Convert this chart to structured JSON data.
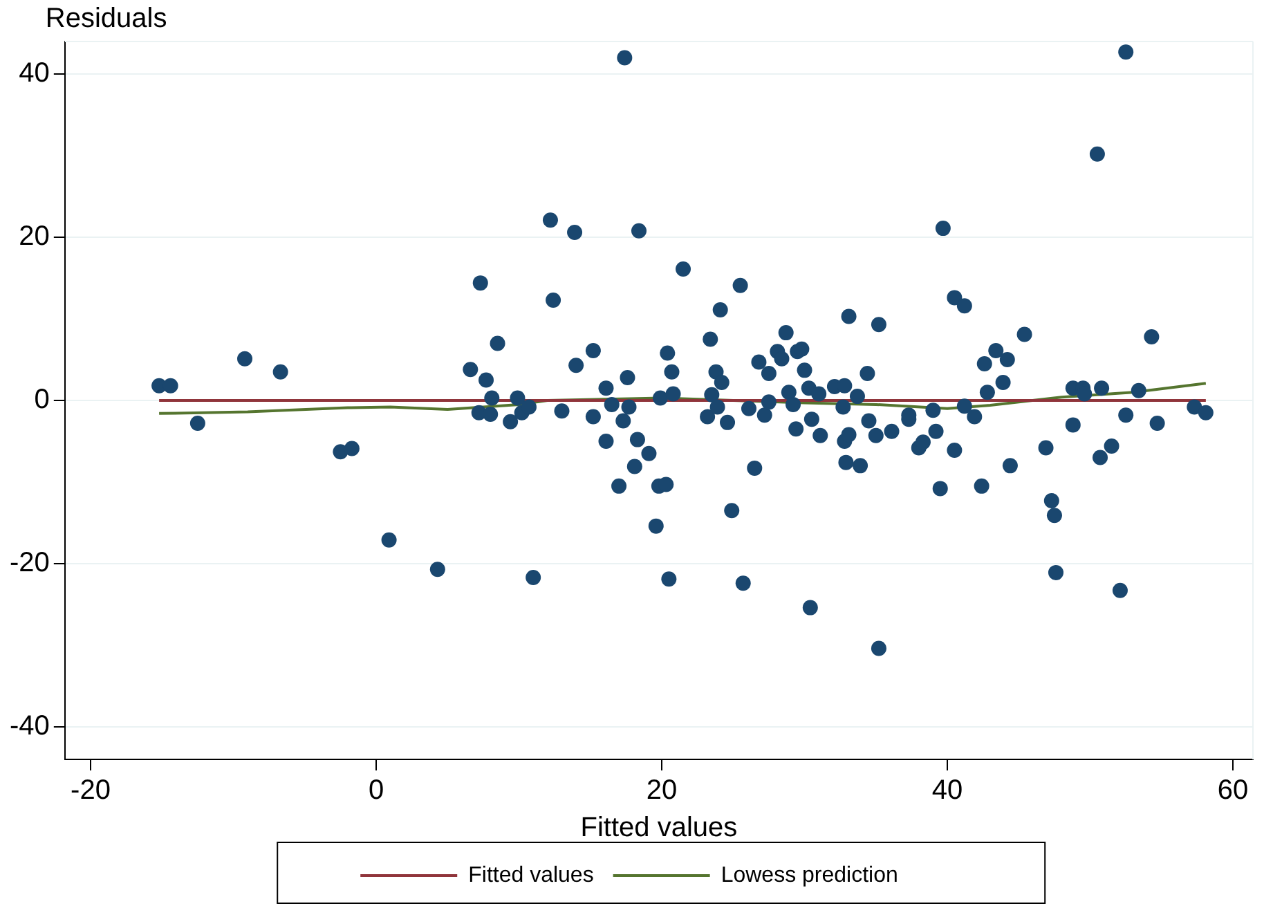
{
  "chart_data": {
    "type": "scatter",
    "xlabel": "Fitted values",
    "ylabel": "Residuals",
    "xlim": [
      -21.8,
      61.4
    ],
    "ylim": [
      -44,
      44
    ],
    "xticks": [
      -20,
      0,
      20,
      40,
      60
    ],
    "yticks": [
      -40,
      -20,
      0,
      20,
      40
    ],
    "grid": "y",
    "legend": "bottom",
    "marker": "circle",
    "series": [
      {
        "color": "#1a476f",
        "x": [
          -15.2,
          -14.4,
          -12.5,
          -9.2,
          -6.7,
          -2.5,
          -1.7,
          0.9,
          4.3,
          6.6,
          7.3,
          7.2,
          7.7,
          8.1,
          8.0,
          8.5,
          9.4,
          9.9,
          10.2,
          10.7,
          11.0,
          12.2,
          12.4,
          13.0,
          13.9,
          14.0,
          15.2,
          15.2,
          16.1,
          16.1,
          16.5,
          17.0,
          17.4,
          17.3,
          17.6,
          17.7,
          18.1,
          18.4,
          18.3,
          19.1,
          19.6,
          19.8,
          19.9,
          20.3,
          20.4,
          20.5,
          20.7,
          20.8,
          21.5,
          23.2,
          23.4,
          23.5,
          23.8,
          23.9,
          24.1,
          24.2,
          24.6,
          24.9,
          25.5,
          25.7,
          26.1,
          26.5,
          26.8,
          27.2,
          27.5,
          27.5,
          28.1,
          28.4,
          28.7,
          28.9,
          29.2,
          29.5,
          29.4,
          29.8,
          30.0,
          30.3,
          30.5,
          30.4,
          31.0,
          31.1,
          32.1,
          32.8,
          32.7,
          32.8,
          32.9,
          33.1,
          33.1,
          33.7,
          33.9,
          34.4,
          34.5,
          35.0,
          35.2,
          35.2,
          36.1,
          37.3,
          37.3,
          38.0,
          38.3,
          39.0,
          39.2,
          39.5,
          39.7,
          40.5,
          40.5,
          41.2,
          41.2,
          41.9,
          42.4,
          42.6,
          42.8,
          43.4,
          43.9,
          44.2,
          44.4,
          45.4,
          46.9,
          47.3,
          47.5,
          47.6,
          48.8,
          48.8,
          49.5,
          49.6,
          50.5,
          50.7,
          50.8,
          51.5,
          52.1,
          52.5,
          52.5,
          53.4,
          54.3,
          54.7,
          57.3,
          58.1
        ],
        "values": [
          1.8,
          1.8,
          -2.8,
          5.1,
          3.5,
          -6.3,
          -5.9,
          -17.1,
          -20.7,
          3.8,
          14.4,
          -1.5,
          2.5,
          0.3,
          -1.7,
          7.0,
          -2.6,
          0.3,
          -1.5,
          -0.8,
          -21.7,
          22.1,
          12.3,
          -1.3,
          20.6,
          4.3,
          6.1,
          -2.0,
          1.5,
          -5.0,
          -0.5,
          -10.5,
          42.0,
          -2.5,
          2.8,
          -0.8,
          -8.1,
          20.8,
          -4.8,
          -6.5,
          -15.4,
          -10.5,
          0.3,
          -10.3,
          5.8,
          -21.9,
          3.5,
          0.8,
          16.1,
          -2.0,
          7.5,
          0.7,
          3.5,
          -0.8,
          11.1,
          2.2,
          -2.7,
          -13.5,
          14.1,
          -22.4,
          -1.0,
          -8.3,
          4.7,
          -1.8,
          3.3,
          -0.2,
          6.0,
          5.1,
          8.3,
          1.0,
          -0.5,
          6.0,
          -3.5,
          6.3,
          3.7,
          1.5,
          -2.3,
          -25.4,
          0.8,
          -4.3,
          1.7,
          1.8,
          -0.8,
          -5.0,
          -7.6,
          10.3,
          -4.2,
          0.5,
          -8.0,
          3.3,
          -2.5,
          -4.3,
          9.3,
          -30.4,
          -3.8,
          -2.3,
          -1.8,
          -5.8,
          -5.1,
          -1.2,
          -3.8,
          -10.8,
          21.1,
          -6.1,
          12.6,
          11.6,
          -0.7,
          -2.0,
          -10.5,
          4.5,
          1.0,
          6.1,
          2.2,
          5.0,
          -8.0,
          8.1,
          -5.8,
          -12.3,
          -14.1,
          -21.1,
          -3.0,
          1.5,
          1.5,
          0.8,
          30.2,
          -7.0,
          1.5,
          -5.6,
          -23.3,
          42.7,
          -1.8,
          1.2,
          7.8,
          -2.8,
          -0.8,
          -1.5
        ]
      },
      {
        "type": "line",
        "name": "Fitted values",
        "color": "#90353b",
        "marker": "none",
        "x": [
          -15.2,
          58.1
        ],
        "values": [
          0,
          0
        ]
      },
      {
        "type": "line",
        "name": "Lowess prediction",
        "color": "#55752f",
        "marker": "none",
        "x": [
          -15.2,
          -9,
          -2,
          1,
          5,
          10,
          12,
          20,
          30,
          35,
          40,
          43,
          48,
          53,
          58.1
        ],
        "values": [
          -1.6,
          -1.4,
          -0.9,
          -0.8,
          -1.1,
          -0.5,
          0,
          0.3,
          -0.3,
          -0.5,
          -1.0,
          -0.6,
          0.4,
          1.0,
          2.1
        ]
      }
    ]
  }
}
